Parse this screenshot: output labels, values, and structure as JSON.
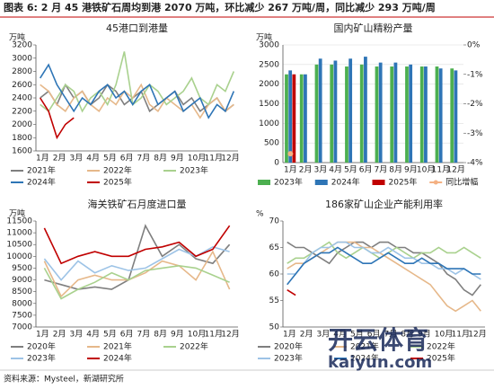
{
  "header": {
    "title": "图表 6: 2 月 45 港铁矿石周均到港 2070 万吨，环比减少 267 万吨/周，同比减少 293 万吨/周"
  },
  "chart_data": [
    {
      "type": "line",
      "title": "45港口到港量",
      "unit": "万吨",
      "categories": [
        "1月",
        null,
        "2月",
        null,
        "3月",
        null,
        "4月",
        null,
        "5月",
        null,
        "6月",
        null,
        "7月",
        null,
        "8月",
        null,
        "9月",
        null,
        "10月",
        null,
        "11月",
        null,
        "12月",
        null
      ],
      "ylim": [
        1600,
        3200
      ],
      "yticks": [
        1600,
        1800,
        2000,
        2200,
        2400,
        2600,
        2800,
        3000,
        3200
      ],
      "series": [
        {
          "name": "2021年",
          "color": "#7f7f7f",
          "values": [
            2400,
            2500,
            2300,
            2600,
            2400,
            2500,
            2300,
            2400,
            2600,
            2500,
            2300,
            2400,
            2500,
            2200,
            2300,
            2400,
            2500,
            2300,
            2400,
            2200,
            2300,
            2400,
            2200,
            2300
          ]
        },
        {
          "name": "2022年",
          "color": "#e6b88a",
          "values": [
            2600,
            2500,
            2300,
            2200,
            2400,
            2500,
            2300,
            2200,
            2400,
            2300,
            2500,
            2400,
            2600,
            2300,
            2200,
            2400,
            2300,
            2200,
            2300,
            2100,
            2300,
            2400,
            2200,
            2300
          ]
        },
        {
          "name": "2023年",
          "color": "#a9d18e",
          "values": [
            2300,
            2200,
            2400,
            2600,
            2500,
            2200,
            2400,
            2500,
            2300,
            2600,
            3100,
            2300,
            2400,
            2600,
            2500,
            2300,
            2400,
            2500,
            2700,
            2400,
            2300,
            2600,
            2500,
            2800
          ]
        },
        {
          "name": "2024年",
          "color": "#2e75b6",
          "values": [
            2700,
            2900,
            2600,
            2400,
            2200,
            2400,
            2300,
            2500,
            2600,
            2400,
            2500,
            2300,
            2500,
            2600,
            2300,
            2400,
            2500,
            2200,
            2300,
            2400,
            2100,
            2300,
            2200,
            2500
          ]
        },
        {
          "name": "2025年",
          "color": "#c00000",
          "values": [
            2400,
            2200,
            1800,
            2000,
            2100,
            null,
            null,
            null,
            null,
            null,
            null,
            null,
            null,
            null,
            null,
            null,
            null,
            null,
            null,
            null,
            null,
            null,
            null,
            null
          ]
        }
      ]
    },
    {
      "type": "bar",
      "title": "国内矿山精粉产量",
      "unit": "万吨",
      "categories": [
        "1月",
        "2月",
        "3月",
        "4月",
        "5月",
        "6月",
        "7月",
        "8月",
        "9月",
        "10月",
        "11月",
        "12月"
      ],
      "ylim": [
        0,
        3000
      ],
      "yticks": [
        0,
        500,
        1000,
        1500,
        2000,
        2500,
        3000
      ],
      "y2lim": [
        -4,
        0
      ],
      "y2ticks": [
        {
          "value": 0,
          "label": "0%"
        },
        {
          "value": -1,
          "label": "-1%"
        },
        {
          "value": -2,
          "label": "-2%"
        },
        {
          "value": -3,
          "label": "-3%"
        },
        {
          "value": -4,
          "label": "-4%"
        }
      ],
      "series": [
        {
          "name": "2023年",
          "color": "#4caf50",
          "values": [
            2250,
            2250,
            2500,
            2500,
            2450,
            2500,
            2450,
            2450,
            2450,
            2450,
            2450,
            2400
          ]
        },
        {
          "name": "2024年",
          "color": "#2e75b6",
          "values": [
            2350,
            2250,
            2650,
            2600,
            2650,
            2700,
            2550,
            2550,
            2500,
            2450,
            2400,
            2350
          ]
        },
        {
          "name": "2025年",
          "color": "#c00000",
          "values": [
            2250,
            null,
            null,
            null,
            null,
            null,
            null,
            null,
            null,
            null,
            null,
            null
          ]
        },
        {
          "name": "同比增幅",
          "color": "#f4b183",
          "type": "line",
          "axis": "y2",
          "values": [
            -3.7,
            null,
            null,
            null,
            null,
            null,
            null,
            null,
            null,
            null,
            null,
            null
          ]
        }
      ]
    },
    {
      "type": "line",
      "title": "海关铁矿石月度进口量",
      "unit": "万吨",
      "categories": [
        "1月",
        "2月",
        "3月",
        "4月",
        "5月",
        "6月",
        "7月",
        "8月",
        "9月",
        "10月",
        "11月",
        "12月"
      ],
      "ylim": [
        7000,
        11500
      ],
      "yticks": [
        7000,
        7500,
        8000,
        8500,
        9000,
        9500,
        10000,
        10500,
        11000,
        11500
      ],
      "series": [
        {
          "name": "2020年",
          "color": "#7f7f7f",
          "values": [
            9000,
            8800,
            8600,
            8700,
            8600,
            9000,
            11300,
            10000,
            10500,
            9900,
            9700,
            10500
          ]
        },
        {
          "name": "2021年",
          "color": "#e6b88a",
          "values": [
            9800,
            8300,
            9000,
            9200,
            9000,
            9000,
            9300,
            9800,
            9600,
            9000,
            10200,
            8600
          ]
        },
        {
          "name": "2022年",
          "color": "#a9d18e",
          "values": [
            9500,
            8200,
            8600,
            8900,
            9300,
            9000,
            9400,
            9500,
            9600,
            9500,
            9200,
            8900
          ]
        },
        {
          "name": "2023年",
          "color": "#9dc3e6",
          "values": [
            9900,
            9000,
            9800,
            9300,
            9600,
            9400,
            9500,
            9900,
            10300,
            10000,
            10400,
            10200
          ]
        },
        {
          "name": "2024年",
          "color": "#c00000",
          "values": [
            11200,
            9700,
            10000,
            10200,
            10000,
            10000,
            10300,
            10400,
            10600,
            10000,
            10300,
            11300
          ]
        }
      ]
    },
    {
      "type": "line",
      "title": "186家矿山企业产能利用率",
      "unit": "%",
      "categories": [
        "1月",
        null,
        "2月",
        null,
        "3月",
        null,
        "4月",
        null,
        "5月",
        null,
        "6月",
        null,
        "7月",
        null,
        "8月",
        null,
        "9月",
        null,
        "10月",
        null,
        "11月",
        null,
        "12月",
        null
      ],
      "ylim": [
        50,
        70
      ],
      "yticks": [
        50,
        55,
        60,
        65,
        70
      ],
      "series": [
        {
          "name": "2020年",
          "color": "#7f7f7f",
          "values": [
            66,
            65,
            65,
            64,
            63,
            62,
            64,
            65,
            66,
            66,
            65,
            66,
            66,
            65,
            65,
            64,
            64,
            63,
            62,
            60,
            59,
            57,
            56,
            58
          ]
        },
        {
          "name": "2021年",
          "color": "#e6b88a",
          "values": [
            61,
            62,
            62,
            63,
            64,
            65,
            66,
            66,
            66,
            65,
            65,
            64,
            63,
            62,
            61,
            60,
            59,
            58,
            56,
            54,
            53,
            54,
            55,
            53
          ]
        },
        {
          "name": "2022年",
          "color": "#a9d18e",
          "values": [
            62,
            63,
            63,
            64,
            65,
            66,
            64,
            63,
            64,
            65,
            64,
            63,
            64,
            65,
            64,
            63,
            64,
            64,
            65,
            64,
            64,
            65,
            64,
            63
          ]
        },
        {
          "name": "2023年",
          "color": "#9dc3e6",
          "values": [
            60,
            60,
            62,
            64,
            65,
            65,
            66,
            66,
            65,
            65,
            64,
            64,
            65,
            64,
            63,
            63,
            62,
            62,
            61,
            61,
            60,
            61,
            60,
            59
          ]
        },
        {
          "name": "2024年",
          "color": "#2e75b6",
          "values": [
            58,
            60,
            62,
            63,
            64,
            64,
            65,
            64,
            63,
            62,
            62,
            63,
            64,
            63,
            62,
            62,
            63,
            62,
            62,
            61,
            61,
            61,
            60,
            60
          ]
        },
        {
          "name": "2025年",
          "color": "#c00000",
          "values": [
            57,
            56,
            null,
            null,
            null,
            null,
            null,
            null,
            null,
            null,
            null,
            null,
            null,
            null,
            null,
            null,
            null,
            null,
            null,
            null,
            null,
            null,
            null,
            null
          ]
        }
      ]
    }
  ],
  "source": "资料来源：Mysteel，新湖研究所",
  "watermark": {
    "brand": "开云体育",
    "url": "kaiyun.com"
  }
}
